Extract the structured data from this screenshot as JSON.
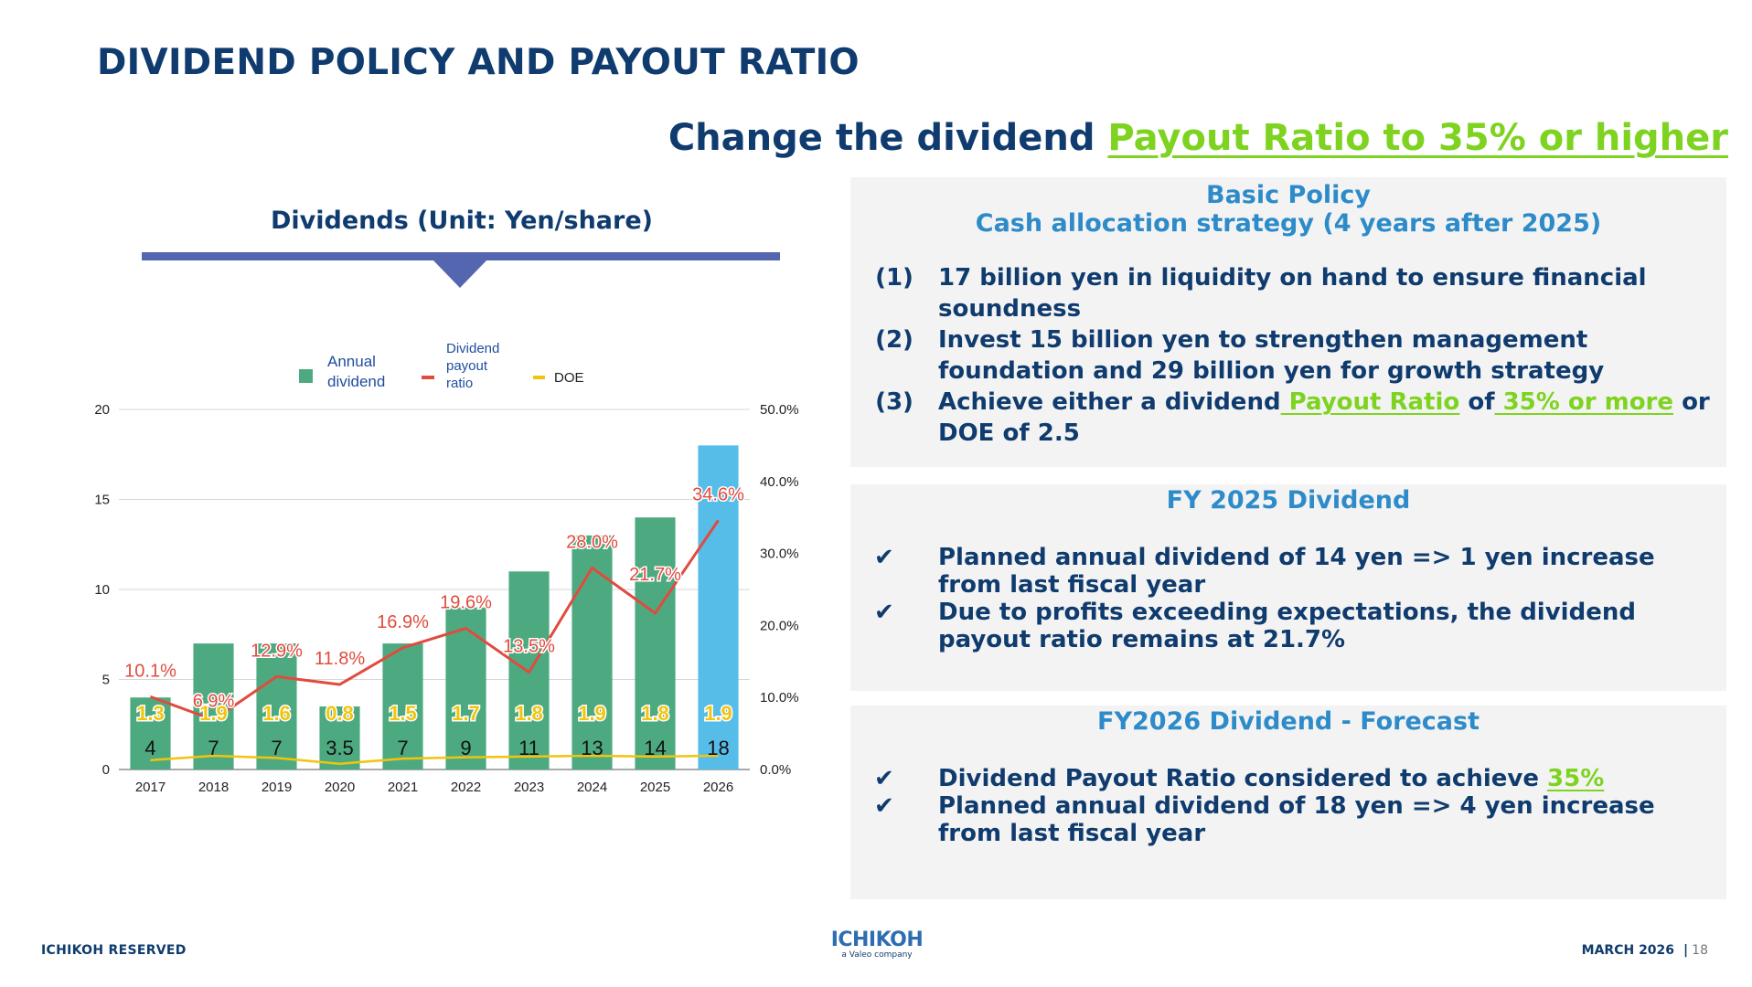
{
  "page_title": "DIVIDEND POLICY AND PAYOUT RATIO",
  "headline": {
    "prefix": "Change the dividend ",
    "highlight": "Payout Ratio to 35% or higher"
  },
  "chart_data": {
    "type": "bar",
    "title": "Dividends (Unit: Yen/share)",
    "categories": [
      "2017",
      "2018",
      "2019",
      "2020",
      "2021",
      "2022",
      "2023",
      "2024",
      "2025",
      "2026"
    ],
    "series": [
      {
        "name": "Annual dividend",
        "kind": "bar",
        "axis": "left",
        "color": "#4daa80",
        "highlight_color": "#56bde8",
        "values": [
          4,
          7,
          7,
          3.5,
          7,
          9,
          11,
          13,
          14,
          18
        ],
        "labels": [
          "4",
          "7",
          "7",
          "3.5",
          "7",
          "9",
          "11",
          "13",
          "14",
          "18"
        ]
      },
      {
        "name": "Dividend payout ratio",
        "kind": "line",
        "axis": "right",
        "color": "#e04b3f",
        "values": [
          10.1,
          6.9,
          12.9,
          11.8,
          16.9,
          19.6,
          13.5,
          28.0,
          21.7,
          34.6
        ],
        "labels": [
          "10.1%",
          "6.9%",
          "12.9%",
          "11.8%",
          "16.9%",
          "19.6%",
          "13.5%",
          "28.0%",
          "21.7%",
          "34.6%"
        ]
      },
      {
        "name": "DOE",
        "kind": "line",
        "axis": "right",
        "color": "#f1c40f",
        "values": [
          1.3,
          1.9,
          1.6,
          0.8,
          1.5,
          1.7,
          1.8,
          1.9,
          1.8,
          1.9
        ],
        "labels": [
          "1.3",
          "1.9",
          "1.6",
          "0.8",
          "1.5",
          "1.7",
          "1.8",
          "1.9",
          "1.8",
          "1.9"
        ]
      }
    ],
    "y_left": {
      "ticks": [
        "0",
        "5",
        "10",
        "15",
        "20"
      ],
      "ylim": [
        0,
        20
      ]
    },
    "y_right": {
      "ticks": [
        "0.0%",
        "10.0%",
        "20.0%",
        "30.0%",
        "40.0%",
        "50.0%"
      ],
      "ylim": [
        0,
        50
      ]
    },
    "legend": {
      "position": "top",
      "annual": "Annual dividend",
      "payout_line1": "Dividend",
      "payout_line2": "payout",
      "payout_line3": "ratio",
      "doe": "DOE",
      "annual_line1": "Annual",
      "annual_line2": "dividend"
    },
    "grid": true
  },
  "policy": {
    "heading1": "Basic Policy",
    "heading2": "Cash allocation strategy (4 years after 2025)",
    "items": [
      {
        "num": "(1)",
        "text": "17 billion yen in liquidity on hand to ensure financial soundness"
      },
      {
        "num": "(2)",
        "text": "Invest 15 billion yen to strengthen management foundation and 29 billion yen for growth strategy"
      },
      {
        "num": "(3)",
        "pre": "Achieve either a dividend",
        "hl1": " Payout Ratio",
        "mid": " of",
        "hl2": " 35% or more",
        "post": " or DOE of 2.5"
      }
    ]
  },
  "fy2025": {
    "heading": "FY 2025 Dividend",
    "items": [
      {
        "mark": "✔",
        "text": "Planned annual dividend of 14 yen => 1 yen increase from last fiscal year"
      },
      {
        "mark": "✔",
        "text": "Due to profits exceeding expectations, the dividend payout ratio remains at 21.7%"
      }
    ]
  },
  "fy2026": {
    "heading": "FY2026 Dividend - Forecast",
    "items": [
      {
        "mark": "✔",
        "pre": "Dividend Payout Ratio considered to achieve ",
        "hl": "35%"
      },
      {
        "mark": "✔",
        "text": "Planned annual dividend of 18 yen => 4 yen increase from last fiscal year"
      }
    ]
  },
  "footer": {
    "left": "ICHIKOH RESERVED",
    "logo_main": "ICHIKOH",
    "logo_sub": "a Valeo company",
    "date": "MARCH 2026",
    "separator": "|",
    "page": "18"
  }
}
